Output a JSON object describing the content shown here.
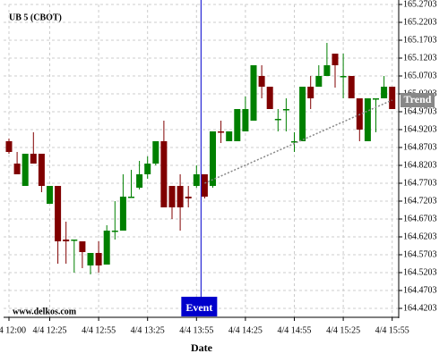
{
  "chart_data": {
    "type": "candlestick",
    "title": "UB 5 (CBOT)",
    "x_label": "Date",
    "watermark": "www.delkos.com",
    "categories": [
      "4/4 12:00",
      null,
      null,
      null,
      null,
      "4/4 12:25",
      null,
      null,
      null,
      null,
      null,
      "4/4 12:55",
      null,
      null,
      null,
      null,
      null,
      "4/4 13:25",
      null,
      null,
      null,
      null,
      null,
      "4/4 13:55",
      null,
      null,
      null,
      null,
      null,
      "4/4 14:25",
      null,
      null,
      null,
      null,
      null,
      "4/4 14:55",
      null,
      null,
      null,
      null,
      null,
      "4/4 15:25",
      null,
      null,
      null,
      null,
      null,
      "4/4 15:55"
    ],
    "open": [
      164.8878,
      164.8253,
      164.7628,
      164.8528,
      164.8528,
      164.7128,
      164.7628,
      164.6128,
      164.6128,
      164.6078,
      164.5403,
      164.5753,
      164.5428,
      164.6378,
      164.6378,
      164.7328,
      164.7578,
      164.7953,
      164.8253,
      164.8878,
      164.7628,
      164.7628,
      164.7328,
      164.7628,
      164.7953,
      164.7628,
      164.9153,
      164.8878,
      164.8878,
      164.9153,
      164.9453,
      165.0703,
      165.0403,
      164.9503,
      164.9778,
      164.8878,
      164.8878,
      165.0403,
      165.0403,
      165.0703,
      165.1328,
      165.0703,
      165.0703,
      165.0078,
      164.8878,
      165.0078,
      165.0078,
      165.0403
    ],
    "high": [
      164.8953,
      164.8578,
      164.8528,
      164.9128,
      164.8528,
      164.7628,
      164.7628,
      164.6628,
      164.6128,
      164.6078,
      164.5753,
      164.6078,
      164.6528,
      164.7203,
      164.7953,
      164.8078,
      164.8328,
      164.8453,
      164.8878,
      164.9453,
      164.7628,
      164.7953,
      164.7628,
      164.8203,
      164.7953,
      164.9153,
      164.9453,
      164.9153,
      164.9778,
      165.0128,
      165.1003,
      165.1003,
      165.0403,
      164.9778,
      165.0078,
      164.9128,
      165.0403,
      165.0703,
      165.1003,
      165.1628,
      165.1328,
      165.1328,
      165.0703,
      165.0078,
      165.0078,
      165.0078,
      165.0703,
      165.0403
    ],
    "low": [
      164.8528,
      164.7953,
      164.7628,
      164.8253,
      164.7453,
      164.7128,
      164.5453,
      164.5453,
      164.5203,
      164.5328,
      164.5153,
      164.5203,
      164.5428,
      164.6128,
      164.6378,
      164.7328,
      164.7528,
      164.7828,
      164.8203,
      164.7028,
      164.6703,
      164.6378,
      164.7028,
      164.7578,
      164.7278,
      164.7578,
      164.8828,
      164.8878,
      164.8878,
      164.9153,
      164.9453,
      165.0078,
      164.9778,
      164.9153,
      164.9153,
      164.8578,
      164.8878,
      164.9778,
      165.0403,
      165.0703,
      165.0378,
      165.0078,
      165.0078,
      164.8878,
      164.8878,
      164.9128,
      165.0078,
      164.9778
    ],
    "close": [
      164.8578,
      164.7953,
      164.8528,
      164.8253,
      164.7628,
      164.7628,
      164.6078,
      164.6078,
      164.6128,
      164.5778,
      164.5753,
      164.5403,
      164.6378,
      164.6378,
      164.7328,
      164.7328,
      164.7953,
      164.8253,
      164.8878,
      164.7028,
      164.7028,
      164.7028,
      164.7278,
      164.7953,
      164.7328,
      164.9153,
      164.9128,
      164.9153,
      164.9778,
      164.9778,
      165.1003,
      165.0403,
      164.9778,
      164.9503,
      164.9778,
      164.8878,
      165.0403,
      165.0078,
      165.0703,
      165.1003,
      165.1003,
      165.0703,
      165.0078,
      164.9203,
      165.0078,
      165.0078,
      165.0403,
      164.9778
    ],
    "up_color": "#008000",
    "down_color": "#800000",
    "ylim": [
      164.3953,
      165.2703
    ],
    "yticks": [
      164.4203,
      164.4703,
      164.5203,
      164.5703,
      164.6203,
      164.6703,
      164.7203,
      164.7703,
      164.8203,
      164.8703,
      164.9203,
      164.9703,
      165.0203,
      165.0703,
      165.1203,
      165.1703,
      165.2203,
      165.2703
    ],
    "grid": true,
    "event": {
      "label": "Event",
      "index": 23,
      "color": "#0000cc"
    },
    "trend": {
      "label": "Trend",
      "index": [
        24,
        47
      ],
      "values": [
        164.7703,
        165.0028
      ],
      "color": "#888888"
    }
  }
}
